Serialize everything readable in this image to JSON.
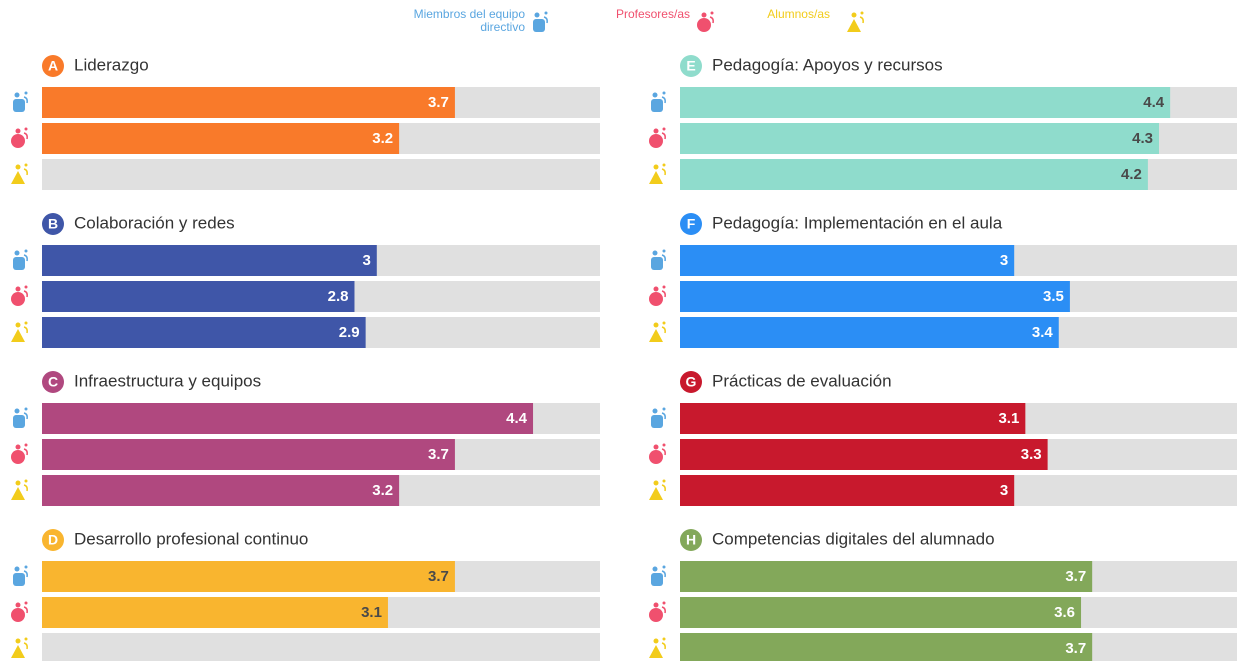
{
  "legend": [
    {
      "name": "Miembros del equipo directivo",
      "color": "#5aa6e0"
    },
    {
      "name": "Profesores/as",
      "color": "#f0506e"
    },
    {
      "name": "Alumnos/as",
      "color": "#f2cc1b"
    }
  ],
  "chart_data": [
    {
      "type": "bar",
      "letter": "A",
      "title": "Liderazgo",
      "color": "#f97a2a",
      "label_color": "#ffffff",
      "values": [
        3.7,
        3.2,
        null
      ],
      "xlim": [
        0,
        5
      ]
    },
    {
      "type": "bar",
      "letter": "B",
      "title": "Colaboración y redes",
      "color": "#3f56a8",
      "label_color": "#ffffff",
      "values": [
        3,
        2.8,
        2.9
      ],
      "xlim": [
        0,
        5
      ]
    },
    {
      "type": "bar",
      "letter": "C",
      "title": "Infraestructura y equipos",
      "color": "#b0487f",
      "label_color": "#ffffff",
      "values": [
        4.4,
        3.7,
        3.2
      ],
      "xlim": [
        0,
        5
      ]
    },
    {
      "type": "bar",
      "letter": "D",
      "title": "Desarrollo profesional continuo",
      "color": "#f9b52f",
      "label_color": "#4a4a4a",
      "values": [
        3.7,
        3.1,
        null
      ],
      "xlim": [
        0,
        5
      ]
    },
    {
      "type": "bar",
      "letter": "E",
      "title": "Pedagogía: Apoyos y recursos",
      "color": "#8fdccc",
      "label_color": "#4a4a4a",
      "values": [
        4.4,
        4.3,
        4.2
      ],
      "xlim": [
        0,
        5
      ]
    },
    {
      "type": "bar",
      "letter": "F",
      "title": "Pedagogía: Implementación en el aula",
      "color": "#2b8ef5",
      "label_color": "#ffffff",
      "values": [
        3,
        3.5,
        3.4
      ],
      "xlim": [
        0,
        5
      ]
    },
    {
      "type": "bar",
      "letter": "G",
      "title": "Prácticas de evaluación",
      "color": "#c8192d",
      "label_color": "#ffffff",
      "values": [
        3.1,
        3.3,
        3
      ],
      "xlim": [
        0,
        5
      ]
    },
    {
      "type": "bar",
      "letter": "H",
      "title": "Competencias digitales del alumnado",
      "color": "#83a85a",
      "label_color": "#ffffff",
      "values": [
        3.7,
        3.6,
        3.7
      ],
      "xlim": [
        0,
        5
      ]
    }
  ]
}
